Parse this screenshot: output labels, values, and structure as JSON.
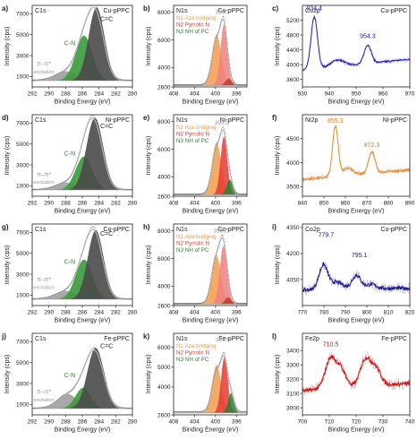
{
  "chart_data": [
    {
      "type": "line",
      "letter": "a)",
      "core": "C1s",
      "sample": "Cu-pPPC",
      "kind": "c1s",
      "xlabel": "Binding Energy (eV)",
      "ylabel": "Intensity (cps)",
      "xlim": [
        292,
        280
      ],
      "ylim": [
        0,
        7800
      ],
      "xticks": [
        292,
        290,
        288,
        286,
        284,
        282,
        280
      ],
      "yticks": [
        1000,
        3000,
        5000,
        7000
      ],
      "components": [
        {
          "name": "π–π* excitation",
          "center": 288.0,
          "amplitude": 900,
          "width": 1.3,
          "color": "#9e9e9e"
        },
        {
          "name": "C-N",
          "center": 285.8,
          "amplitude": 4300,
          "width": 1.0,
          "color": "#3a9a3a"
        },
        {
          "name": "C=C",
          "center": 284.3,
          "amplitude": 7000,
          "width": 0.95,
          "color": "#4a4a4a"
        }
      ],
      "envelope_peak": 7600,
      "labels": [
        {
          "text": "C=C",
          "x": 283.1,
          "y": 6300,
          "color": "#222222"
        },
        {
          "text": "C-N",
          "x": 287.5,
          "y": 4000,
          "color": "#2e8b2e"
        },
        {
          "text": "π–π*",
          "x": 290.6,
          "y": 2000,
          "color": "#9a9a9a"
        },
        {
          "text": "excitation",
          "x": 290.6,
          "y": 1300,
          "color": "#9a9a9a"
        }
      ]
    },
    {
      "type": "line",
      "letter": "b)",
      "core": "N1s",
      "sample": "Cu-pPPC",
      "kind": "n1s",
      "xlabel": "Binding Energy (eV)",
      "ylabel": "Intensity (cps)",
      "xlim": [
        408,
        394
      ],
      "ylim": [
        2600,
        8500
      ],
      "xticks": [
        408,
        404,
        400,
        396
      ],
      "yticks": [
        2600,
        4000,
        6000,
        8000
      ],
      "peak_label": "398.7",
      "peak_label_x": 398.7,
      "peak_label_y": 7900,
      "legend": [
        "N1 Aza bridging",
        "N2 Pyrrolic N",
        "N3 NH of PC"
      ],
      "components": [
        {
          "name": "N1 Aza bridging",
          "center": 399.8,
          "amplitude": 3700,
          "width": 0.9,
          "color": "#f39c4a"
        },
        {
          "name": "N2 Pyrrolic N",
          "center": 398.4,
          "amplitude": 4400,
          "width": 0.65,
          "color": "#f08080"
        },
        {
          "name": "N3 NH of PC",
          "center": 397.5,
          "amplitude": 500,
          "width": 0.6,
          "color": "#c0392b"
        }
      ],
      "envelope_peak": 7500
    },
    {
      "type": "line",
      "letter": "c)",
      "core": "Cu2p",
      "sample": "Cu-pPPC",
      "kind": "metal",
      "xlabel": "Binding Energy (eV)",
      "ylabel": "Intensity (cps)",
      "xlim": [
        930,
        970
      ],
      "ylim": [
        3400,
        5600
      ],
      "xticks": [
        930,
        940,
        950,
        960,
        970
      ],
      "yticks": [
        3600,
        4000,
        4400,
        4800,
        5200
      ],
      "color": "#1a1acc",
      "noise": 45,
      "base_start": 3850,
      "base_end": 4150,
      "peaks": [
        {
          "center": 934.4,
          "amplitude": 1400,
          "width": 1.2
        },
        {
          "center": 954.3,
          "amplitude": 500,
          "width": 1.3
        },
        {
          "center": 943,
          "amplitude": 180,
          "width": 2.5
        }
      ],
      "peak_labels": [
        {
          "text": "934.4",
          "x": 934.4,
          "y": 5470,
          "color": "#1a1acc"
        },
        {
          "text": "954.3",
          "x": 954.3,
          "y": 4720,
          "color": "#1a1acc"
        }
      ]
    },
    {
      "type": "line",
      "letter": "d)",
      "core": "C1s",
      "sample": "Ni-pPPC",
      "kind": "c1s",
      "xlabel": "Binding Energy (eV)",
      "ylabel": "Intensity (cps)",
      "xlim": [
        292,
        280
      ],
      "ylim": [
        0,
        7800
      ],
      "xticks": [
        292,
        290,
        288,
        286,
        284,
        282,
        280
      ],
      "yticks": [
        1000,
        3000,
        5000,
        7000
      ],
      "components": [
        {
          "name": "π–π* excitation",
          "center": 288.0,
          "amplitude": 700,
          "width": 1.3,
          "color": "#9e9e9e"
        },
        {
          "name": "C-N",
          "center": 285.8,
          "amplitude": 3200,
          "width": 1.0,
          "color": "#3a9a3a"
        },
        {
          "name": "C=C",
          "center": 284.5,
          "amplitude": 6900,
          "width": 1.0,
          "color": "#4a4a4a"
        }
      ],
      "envelope_peak": 7500,
      "labels": [
        {
          "text": "C=C",
          "x": 283.1,
          "y": 6500,
          "color": "#222222"
        },
        {
          "text": "C-N",
          "x": 287.5,
          "y": 3900,
          "color": "#2e8b2e"
        },
        {
          "text": "π–π*",
          "x": 290.6,
          "y": 1900,
          "color": "#9a9a9a"
        },
        {
          "text": "excitation",
          "x": 290.6,
          "y": 1200,
          "color": "#9a9a9a"
        }
      ]
    },
    {
      "type": "line",
      "letter": "e)",
      "core": "N1s",
      "sample": "Ni-pPPC",
      "kind": "n1s",
      "xlabel": "Binding Energy (eV)",
      "ylabel": "Intensity (cps)",
      "xlim": [
        408,
        394
      ],
      "ylim": [
        2600,
        8500
      ],
      "xticks": [
        408,
        404,
        400,
        396
      ],
      "yticks": [
        2600,
        4000,
        6000,
        8000
      ],
      "peak_label": "398.8",
      "peak_label_x": 398.8,
      "peak_label_y": 7800,
      "legend": [
        "N1 Aza bridging",
        "N2 Pyrrolic N",
        "N3 NH of PC"
      ],
      "components": [
        {
          "name": "N1 Aza bridging",
          "center": 399.8,
          "amplitude": 3800,
          "width": 0.9,
          "color": "#f39c4a"
        },
        {
          "name": "N2 Pyrrolic N",
          "center": 398.4,
          "amplitude": 4200,
          "width": 0.65,
          "color": "#e53935"
        },
        {
          "name": "N3 NH of PC",
          "center": 397.3,
          "amplitude": 1100,
          "width": 0.6,
          "color": "#2e7d32"
        }
      ],
      "envelope_peak": 7400
    },
    {
      "type": "line",
      "letter": "f)",
      "core": "Ni2p",
      "sample": "Ni-pPPC",
      "kind": "metal",
      "xlabel": "Binding Energy (eV)",
      "ylabel": "Intensity (cps)",
      "xlim": [
        840,
        890
      ],
      "ylim": [
        3300,
        5000
      ],
      "xticks": [
        840,
        850,
        860,
        870,
        880,
        890
      ],
      "yticks": [
        3500,
        4000,
        4500
      ],
      "color": "#f08c1e",
      "noise": 40,
      "base_start": 3650,
      "base_end": 3850,
      "peaks": [
        {
          "center": 855.3,
          "amplitude": 1050,
          "width": 1.3
        },
        {
          "center": 872.3,
          "amplitude": 450,
          "width": 1.5
        },
        {
          "center": 861,
          "amplitude": 150,
          "width": 2.5
        }
      ],
      "peak_labels": [
        {
          "text": "855.3",
          "x": 855.3,
          "y": 4830,
          "color": "#e07b10"
        },
        {
          "text": "872.3",
          "x": 872.3,
          "y": 4330,
          "color": "#e07b10"
        }
      ]
    },
    {
      "type": "line",
      "letter": "g)",
      "core": "C1s",
      "sample": "Co-pPPC",
      "kind": "c1s",
      "xlabel": "Binding Energy (eV)",
      "ylabel": "Intensity (cps)",
      "xlim": [
        292,
        280
      ],
      "ylim": [
        0,
        7800
      ],
      "xticks": [
        292,
        290,
        288,
        286,
        284,
        282,
        280
      ],
      "yticks": [
        1000,
        3000,
        5000,
        7000
      ],
      "components": [
        {
          "name": "π–π* excitation",
          "center": 288.0,
          "amplitude": 800,
          "width": 1.3,
          "color": "#9e9e9e"
        },
        {
          "name": "C-N",
          "center": 285.8,
          "amplitude": 3800,
          "width": 1.0,
          "color": "#3a9a3a"
        },
        {
          "name": "C=C",
          "center": 284.4,
          "amplitude": 6600,
          "width": 0.95,
          "color": "#4a4a4a"
        }
      ],
      "envelope_peak": 7300,
      "labels": [
        {
          "text": "C=C",
          "x": 283.1,
          "y": 6700,
          "color": "#222222"
        },
        {
          "text": "C-N",
          "x": 287.5,
          "y": 4000,
          "color": "#2e8b2e"
        },
        {
          "text": "π–π*",
          "x": 290.6,
          "y": 2300,
          "color": "#9a9a9a"
        },
        {
          "text": "excitation",
          "x": 290.6,
          "y": 1600,
          "color": "#9a9a9a"
        }
      ]
    },
    {
      "type": "line",
      "letter": "h)",
      "core": "N1s",
      "sample": "Co-pPPC",
      "kind": "n1s",
      "xlabel": "Binding Energy (eV)",
      "ylabel": "Intensity (cps)",
      "xlim": [
        408,
        394
      ],
      "ylim": [
        2600,
        8500
      ],
      "xticks": [
        408,
        404,
        400,
        396
      ],
      "yticks": [
        2600,
        4000,
        6000,
        8000
      ],
      "peak_label": "399.0",
      "peak_label_x": 399.0,
      "peak_label_y": 7900,
      "legend": [
        "N1 Aza bridging",
        "N2 Pyrrolic N",
        "N3 NH of PC"
      ],
      "components": [
        {
          "name": "N1 Aza bridging",
          "center": 399.9,
          "amplitude": 3600,
          "width": 0.9,
          "color": "#f39c4a"
        },
        {
          "name": "N2 Pyrrolic N",
          "center": 398.5,
          "amplitude": 4200,
          "width": 0.7,
          "color": "#f08080"
        },
        {
          "name": "N3 NH of PC",
          "center": 397.6,
          "amplitude": 500,
          "width": 0.6,
          "color": "#c0392b"
        }
      ],
      "envelope_peak": 7500
    },
    {
      "type": "line",
      "letter": "i)",
      "core": "Co2p",
      "sample": "Co-pPPC",
      "kind": "metal",
      "xlabel": "Binding Energy (eV)",
      "ylabel": "Intensity (cps)",
      "xlim": [
        770,
        820
      ],
      "ylim": [
        3900,
        4370
      ],
      "xticks": [
        770,
        780,
        790,
        800,
        810,
        820
      ],
      "yticks": [
        4050,
        4200,
        4350
      ],
      "color": "#1a1a99",
      "noise": 22,
      "base_start": 3990,
      "base_end": 4000,
      "peaks": [
        {
          "center": 779.7,
          "amplitude": 140,
          "width": 2.0
        },
        {
          "center": 786,
          "amplitude": 40,
          "width": 3.0
        },
        {
          "center": 795.1,
          "amplitude": 80,
          "width": 2.0
        },
        {
          "center": 802,
          "amplitude": 25,
          "width": 2.5
        }
      ],
      "peak_labels": [
        {
          "text": "779.7",
          "x": 781.0,
          "y": 4295,
          "color": "#1a1a99"
        },
        {
          "text": "795.1",
          "x": 796.5,
          "y": 4180,
          "color": "#1a1a99"
        }
      ]
    },
    {
      "type": "line",
      "letter": "j)",
      "core": "C1s",
      "sample": "Fe-pPPC",
      "kind": "c1s",
      "xlabel": "Binding Energy (eV)",
      "ylabel": "Intensity (cps)",
      "xlim": [
        292,
        280
      ],
      "ylim": [
        0,
        7800
      ],
      "xticks": [
        292,
        290,
        288,
        286,
        284,
        282,
        280
      ],
      "yticks": [
        1000,
        3000,
        5000,
        7000
      ],
      "components": [
        {
          "name": "π–π* excitation",
          "center": 287.8,
          "amplitude": 1400,
          "width": 1.2,
          "color": "#9e9e9e"
        },
        {
          "name": "C-N",
          "center": 285.9,
          "amplitude": 2000,
          "width": 0.9,
          "color": "#3a9a3a"
        },
        {
          "name": "C=C",
          "center": 284.4,
          "amplitude": 5800,
          "width": 1.0,
          "color": "#4a4a4a"
        }
      ],
      "envelope_peak": 6200,
      "labels": [
        {
          "text": "C=C",
          "x": 283.1,
          "y": 6400,
          "color": "#222222"
        },
        {
          "text": "C-N",
          "x": 287.5,
          "y": 3600,
          "color": "#2e8b2e"
        },
        {
          "text": "π–π*",
          "x": 290.6,
          "y": 2000,
          "color": "#9a9a9a"
        },
        {
          "text": "excitation",
          "x": 290.6,
          "y": 1300,
          "color": "#9a9a9a"
        }
      ]
    },
    {
      "type": "line",
      "letter": "k)",
      "core": "N1s",
      "sample": "Fe-pPPC",
      "kind": "n1s",
      "xlabel": "Binding Energy (eV)",
      "ylabel": "Intensity (cps)",
      "xlim": [
        408,
        394
      ],
      "ylim": [
        2600,
        6700
      ],
      "xticks": [
        408,
        404,
        400,
        396
      ],
      "yticks": [
        2600,
        4000,
        5000,
        6000
      ],
      "peak_label": "398.6",
      "peak_label_x": 398.6,
      "peak_label_y": 6300,
      "legend": [
        "N1 Aza bridging",
        "N2 Pyrrolic N",
        "N3 NH of PC"
      ],
      "components": [
        {
          "name": "N1 Aza bridging",
          "center": 399.8,
          "amplitude": 2400,
          "width": 0.9,
          "color": "#f39c4a"
        },
        {
          "name": "N2 Pyrrolic N",
          "center": 398.3,
          "amplitude": 2800,
          "width": 0.65,
          "color": "#e53935"
        },
        {
          "name": "N3 NH of PC",
          "center": 397.0,
          "amplitude": 1000,
          "width": 0.6,
          "color": "#2e7d32"
        }
      ],
      "envelope_peak": 5600
    },
    {
      "type": "line",
      "letter": "l)",
      "core": "Fe2p",
      "sample": "Fe-pPPC",
      "kind": "metal",
      "xlabel": "Binding Energy (eV)",
      "ylabel": "Intensity (cps)",
      "xlim": [
        700,
        740
      ],
      "ylim": [
        2950,
        3520
      ],
      "xticks": [
        700,
        710,
        720,
        730,
        740
      ],
      "yticks": [
        3000,
        3100,
        3200,
        3300,
        3400
      ],
      "color": "#dd1111",
      "noise": 28,
      "base_start": 3120,
      "base_end": 3170,
      "peaks": [
        {
          "center": 710.5,
          "amplitude": 210,
          "width": 2.0
        },
        {
          "center": 714.5,
          "amplitude": 120,
          "width": 1.8
        },
        {
          "center": 723.5,
          "amplitude": 190,
          "width": 2.0
        },
        {
          "center": 727.5,
          "amplitude": 110,
          "width": 1.8
        }
      ],
      "peak_labels": [
        {
          "text": "710.5",
          "x": 710.5,
          "y": 3430,
          "color": "#dd1111"
        }
      ]
    }
  ]
}
